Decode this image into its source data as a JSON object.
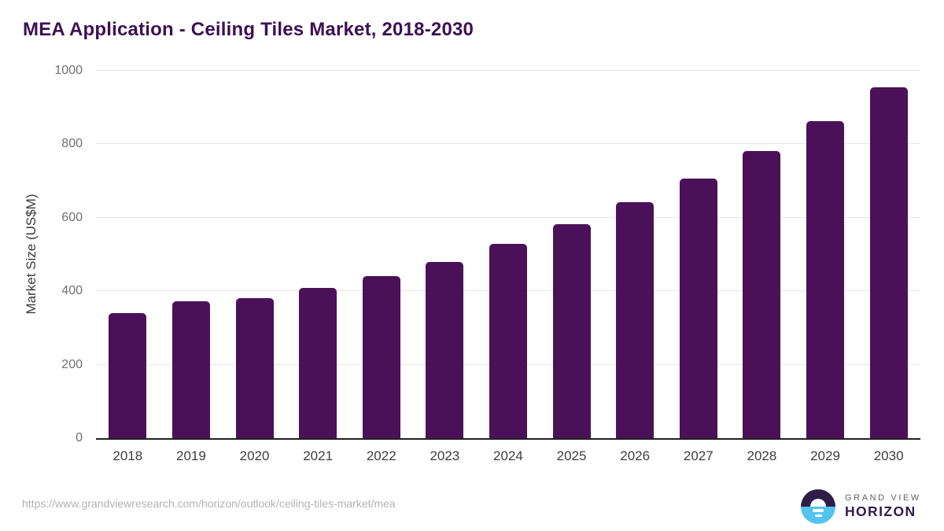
{
  "title": "MEA Application - Ceiling Tiles Market, 2018-2030",
  "source_url": "https://www.grandviewresearch.com/horizon/outlook/ceiling-tiles-market/mea",
  "branding": {
    "name_top": "GRAND VIEW",
    "name_bottom": "HORIZON"
  },
  "colors": {
    "bar": "#4a1158",
    "title": "#3d1053",
    "axis_title": "#3a3a3a",
    "tick_label": "#707070",
    "x_label": "#3d3d3d",
    "axis_line": "#212121",
    "gridline": "#e6e6e6",
    "url": "#b3b3b3",
    "logo_dark": "#2e1c49",
    "logo_blue": "#55c3f0"
  },
  "chart_data": {
    "type": "bar",
    "title": "MEA Application - Ceiling Tiles Market, 2018-2030",
    "categories": [
      "2018",
      "2019",
      "2020",
      "2021",
      "2022",
      "2023",
      "2024",
      "2025",
      "2026",
      "2027",
      "2028",
      "2029",
      "2030"
    ],
    "values": [
      340,
      373,
      382,
      408,
      441,
      480,
      530,
      582,
      642,
      706,
      781,
      862,
      955
    ],
    "xlabel": "",
    "ylabel": "Market Size (US$M)",
    "ylim": [
      0,
      1000
    ],
    "ytick_step": 200,
    "yticks": [
      0,
      200,
      400,
      600,
      800,
      1000
    ],
    "grid": true,
    "legend": false,
    "bar_color": "#4a1158"
  }
}
